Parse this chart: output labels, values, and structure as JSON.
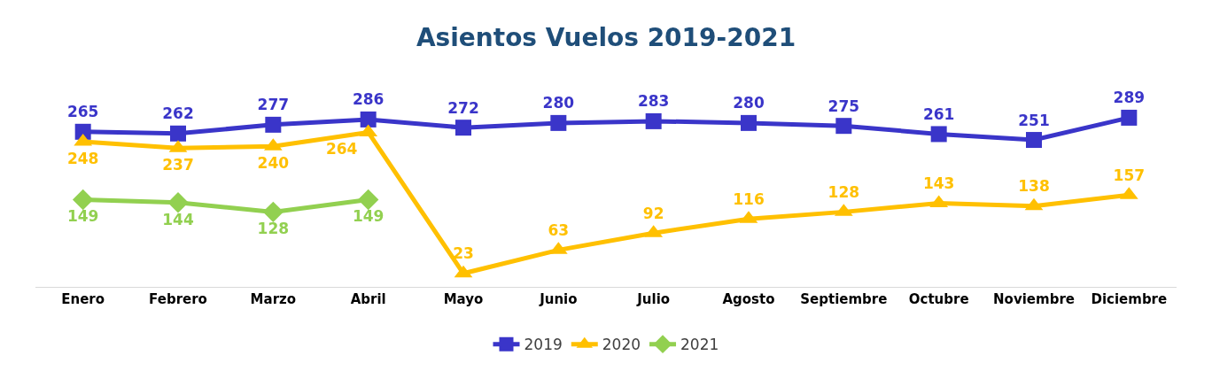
{
  "chart_data": {
    "type": "line",
    "title": "Asientos Vuelos 2019-2021",
    "categories": [
      "Enero",
      "Febrero",
      "Marzo",
      "Abril",
      "Mayo",
      "Junio",
      "Julio",
      "Agosto",
      "Septiembre",
      "Octubre",
      "Noviembre",
      "Diciembre"
    ],
    "series": [
      {
        "name": "2019",
        "color": "#3a35c9",
        "marker": "square",
        "values": [
          265,
          262,
          277,
          286,
          272,
          280,
          283,
          280,
          275,
          261,
          251,
          289
        ]
      },
      {
        "name": "2020",
        "color": "#ffc000",
        "marker": "triangle",
        "values": [
          248,
          237,
          240,
          264,
          23,
          63,
          92,
          116,
          128,
          143,
          138,
          157
        ]
      },
      {
        "name": "2021",
        "color": "#92d050",
        "marker": "diamond",
        "values": [
          149,
          144,
          128,
          149,
          null,
          null,
          null,
          null,
          null,
          null,
          null,
          null
        ]
      }
    ],
    "data_labels": true,
    "legend": "bottom",
    "line_style": "solid"
  }
}
